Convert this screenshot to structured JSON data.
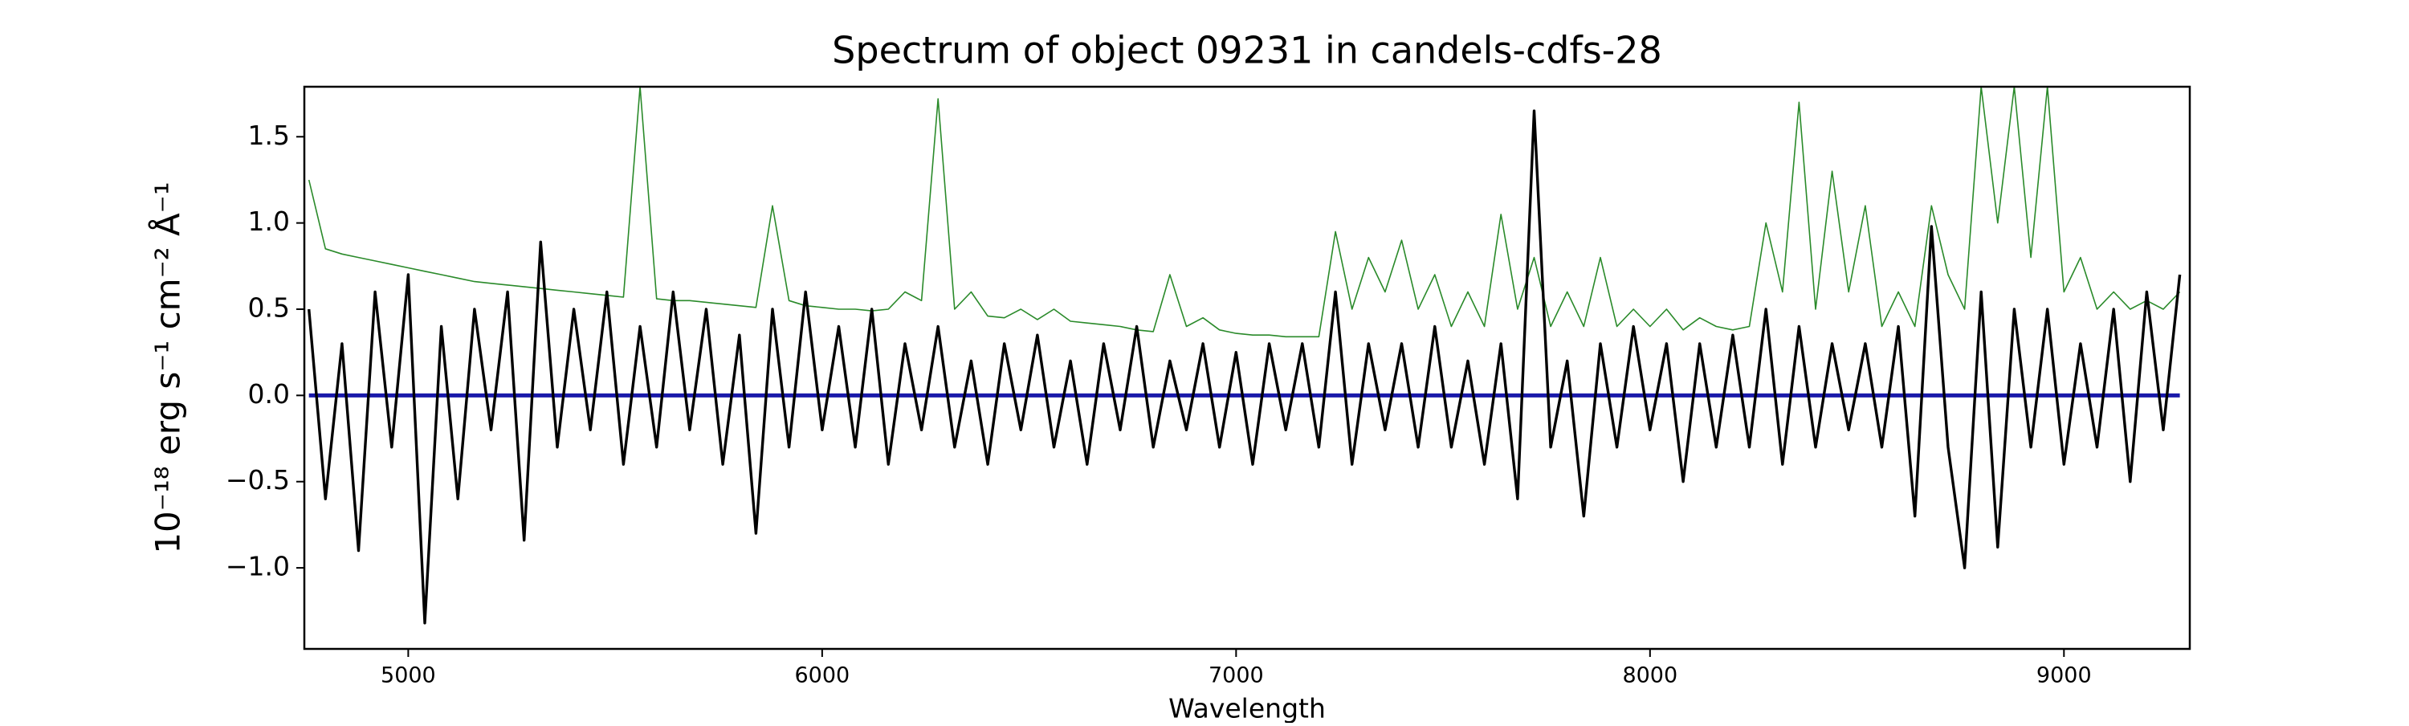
{
  "chart_data": {
    "type": "line",
    "title": "Spectrum of object 09231 in candels-cdfs-28",
    "xlabel": "Wavelength",
    "ylabel": "10⁻¹⁸ erg s⁻¹ cm⁻² Å⁻¹",
    "xlim": [
      4749,
      9304
    ],
    "ylim": [
      -1.47,
      1.79
    ],
    "xticks": [
      5000,
      6000,
      7000,
      8000,
      9000
    ],
    "yticks": [
      {
        "value": -1,
        "label": "−1.0"
      },
      {
        "value": -0.5,
        "label": "−0.5"
      },
      {
        "value": 0,
        "label": "0.0"
      },
      0.5,
      {
        "value": 1,
        "label": "1.0"
      },
      1.5
    ],
    "x": [
      4760,
      4800,
      4840,
      4880,
      4920,
      4960,
      5000,
      5040,
      5080,
      5120,
      5160,
      5200,
      5240,
      5280,
      5320,
      5360,
      5400,
      5440,
      5480,
      5520,
      5560,
      5600,
      5640,
      5680,
      5720,
      5760,
      5800,
      5840,
      5880,
      5920,
      5960,
      6000,
      6040,
      6080,
      6120,
      6160,
      6200,
      6240,
      6280,
      6320,
      6360,
      6400,
      6440,
      6480,
      6520,
      6560,
      6600,
      6640,
      6680,
      6720,
      6760,
      6800,
      6840,
      6880,
      6920,
      6960,
      7000,
      7040,
      7080,
      7120,
      7160,
      7200,
      7240,
      7280,
      7320,
      7360,
      7400,
      7440,
      7480,
      7520,
      7560,
      7600,
      7640,
      7680,
      7720,
      7760,
      7800,
      7840,
      7880,
      7920,
      7960,
      8000,
      8040,
      8080,
      8120,
      8160,
      8200,
      8240,
      8280,
      8320,
      8360,
      8400,
      8440,
      8480,
      8520,
      8560,
      8600,
      8640,
      8680,
      8720,
      8760,
      8800,
      8840,
      8880,
      8920,
      8960,
      9000,
      9040,
      9080,
      9120,
      9160,
      9200,
      9240,
      9280
    ],
    "series": [
      {
        "color": "#2a8a2a",
        "width": 1.6,
        "values": [
          1.25,
          0.85,
          0.82,
          0.8,
          0.78,
          0.76,
          0.74,
          0.72,
          0.7,
          0.68,
          0.66,
          0.65,
          0.64,
          0.63,
          0.62,
          0.61,
          0.6,
          0.59,
          0.58,
          0.57,
          1.79,
          0.56,
          0.55,
          0.55,
          0.54,
          0.53,
          0.52,
          0.51,
          1.1,
          0.55,
          0.52,
          0.51,
          0.5,
          0.5,
          0.49,
          0.5,
          0.6,
          0.55,
          1.72,
          0.5,
          0.6,
          0.46,
          0.45,
          0.5,
          0.44,
          0.5,
          0.43,
          0.42,
          0.41,
          0.4,
          0.38,
          0.37,
          0.7,
          0.4,
          0.45,
          0.38,
          0.36,
          0.35,
          0.35,
          0.34,
          0.34,
          0.34,
          0.95,
          0.5,
          0.8,
          0.6,
          0.9,
          0.5,
          0.7,
          0.4,
          0.6,
          0.4,
          1.05,
          0.5,
          0.8,
          0.4,
          0.6,
          0.4,
          0.8,
          0.4,
          0.5,
          0.4,
          0.5,
          0.38,
          0.45,
          0.4,
          0.38,
          0.4,
          1.0,
          0.6,
          1.7,
          0.5,
          1.3,
          0.6,
          1.1,
          0.4,
          0.6,
          0.4,
          1.1,
          0.7,
          0.5,
          1.79,
          1.0,
          1.79,
          0.8,
          1.79,
          0.6,
          0.8,
          0.5,
          0.6,
          0.5,
          0.55,
          0.5,
          0.6
        ]
      },
      {
        "color": "#1a1aaa",
        "width": 5,
        "values": [
          0,
          0,
          0,
          0,
          0,
          0,
          0,
          0,
          0,
          0,
          0,
          0,
          0,
          0,
          0,
          0,
          0,
          0,
          0,
          0,
          0,
          0,
          0,
          0,
          0,
          0,
          0,
          0,
          0,
          0,
          0,
          0,
          0,
          0,
          0,
          0,
          0,
          0,
          0,
          0,
          0,
          0,
          0,
          0,
          0,
          0,
          0,
          0,
          0,
          0,
          0,
          0,
          0,
          0,
          0,
          0,
          0,
          0,
          0,
          0,
          0,
          0,
          0,
          0,
          0,
          0,
          0,
          0,
          0,
          0,
          0,
          0,
          0,
          0,
          0,
          0,
          0,
          0,
          0,
          0,
          0,
          0,
          0,
          0,
          0,
          0,
          0,
          0,
          0,
          0,
          0,
          0,
          0,
          0,
          0,
          0,
          0,
          0,
          0,
          0,
          0,
          0,
          0,
          0,
          0,
          0,
          0,
          0,
          0,
          0,
          0,
          0,
          0,
          0
        ]
      },
      {
        "color": "#000000",
        "width": 3.4,
        "values": [
          0.5,
          -0.6,
          0.3,
          -0.9,
          0.6,
          -0.3,
          0.7,
          -1.32,
          0.4,
          -0.6,
          0.5,
          -0.2,
          0.6,
          -0.84,
          0.89,
          -0.3,
          0.5,
          -0.2,
          0.6,
          -0.4,
          0.4,
          -0.3,
          0.6,
          -0.2,
          0.5,
          -0.4,
          0.35,
          -0.8,
          0.5,
          -0.3,
          0.6,
          -0.2,
          0.4,
          -0.3,
          0.5,
          -0.4,
          0.3,
          -0.2,
          0.4,
          -0.3,
          0.2,
          -0.4,
          0.3,
          -0.2,
          0.35,
          -0.3,
          0.2,
          -0.4,
          0.3,
          -0.2,
          0.4,
          -0.3,
          0.2,
          -0.2,
          0.3,
          -0.3,
          0.25,
          -0.4,
          0.3,
          -0.2,
          0.3,
          -0.3,
          0.6,
          -0.4,
          0.3,
          -0.2,
          0.3,
          -0.3,
          0.4,
          -0.3,
          0.2,
          -0.4,
          0.3,
          -0.6,
          1.65,
          -0.3,
          0.2,
          -0.7,
          0.3,
          -0.3,
          0.4,
          -0.2,
          0.3,
          -0.5,
          0.3,
          -0.3,
          0.35,
          -0.3,
          0.5,
          -0.4,
          0.4,
          -0.3,
          0.3,
          -0.2,
          0.3,
          -0.3,
          0.4,
          -0.7,
          0.98,
          -0.3,
          -1.0,
          0.6,
          -0.88,
          0.5,
          -0.3,
          0.5,
          -0.4,
          0.3,
          -0.3,
          0.5,
          -0.5,
          0.6,
          -0.2,
          0.7
        ]
      }
    ]
  }
}
